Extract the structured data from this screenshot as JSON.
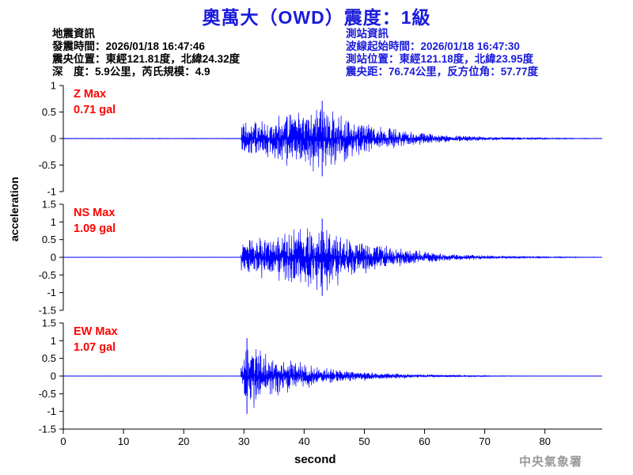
{
  "title": "奧萬大（OWD）震度：1級",
  "earthquake_info": {
    "heading": "地震資訊",
    "origin_time": "發震時間：2026/01/18 16:47:46",
    "epicenter": "震央位置：東經121.81度，北緯24.32度",
    "depth_magnitude": "深　度：5.9公里，芮氏規模：4.9"
  },
  "station_info": {
    "heading": "測站資訊",
    "wave_start": "波線起始時間：2026/01/18 16:47:30",
    "location": "測站位置：東經121.18度，北緯23.95度",
    "distance_azimuth": "震央距：76.74公里，反方位角：57.77度"
  },
  "agency": "中央氣象署",
  "colors": {
    "title": "#1a1adc",
    "trace": "#0000ff",
    "label": "#ff0000",
    "info_right": "#1a1adc"
  },
  "chart_data": [
    {
      "type": "line",
      "panel": "Z",
      "label": "Z Max",
      "max_label": "0.71 gal",
      "max": 0.71,
      "ylim": [
        -1,
        1
      ],
      "yticks": [
        1,
        0.5,
        0,
        -0.5,
        -1
      ],
      "ytick_labels": [
        "1",
        "0.5",
        "0",
        "-0.5",
        "-1"
      ],
      "xlim": [
        0,
        89.5
      ],
      "envelope": {
        "onset_s": 29.5,
        "peak_time_s": 43,
        "noise_floor": 0.005
      }
    },
    {
      "type": "line",
      "panel": "NS",
      "label": "NS Max",
      "max_label": "1.09 gal",
      "max": 1.09,
      "ylim": [
        -1.5,
        1.5
      ],
      "yticks": [
        1.5,
        1,
        0.5,
        0,
        -0.5,
        -1,
        -1.5
      ],
      "ytick_labels": [
        "1.5",
        "1",
        "0.5",
        "0",
        "-0.5",
        "-1",
        "-1.5"
      ],
      "xlim": [
        0,
        89.5
      ],
      "envelope": {
        "onset_s": 29.5,
        "peak_time_s": 43,
        "noise_floor": 0.005
      }
    },
    {
      "type": "line",
      "panel": "EW",
      "label": "EW Max",
      "max_label": "1.07 gal",
      "max": 1.07,
      "ylim": [
        -1.5,
        1.5
      ],
      "yticks": [
        1.5,
        1,
        0.5,
        0,
        -0.5,
        -1,
        -1.5
      ],
      "ytick_labels": [
        "1.5",
        "1",
        "0.5",
        "0",
        "-0.5",
        "-1",
        "-1.5"
      ],
      "xlim": [
        0,
        89.5
      ],
      "xticks": [
        0,
        10,
        20,
        30,
        40,
        50,
        60,
        70,
        80
      ],
      "xtick_labels": [
        "0",
        "10",
        "20",
        "30",
        "40",
        "50",
        "60",
        "70",
        "80"
      ],
      "envelope": {
        "onset_s": 29.5,
        "peak_time_s": 30.5,
        "noise_floor": 0.005
      }
    }
  ],
  "ylabel": "acceleration",
  "xlabel": "second"
}
